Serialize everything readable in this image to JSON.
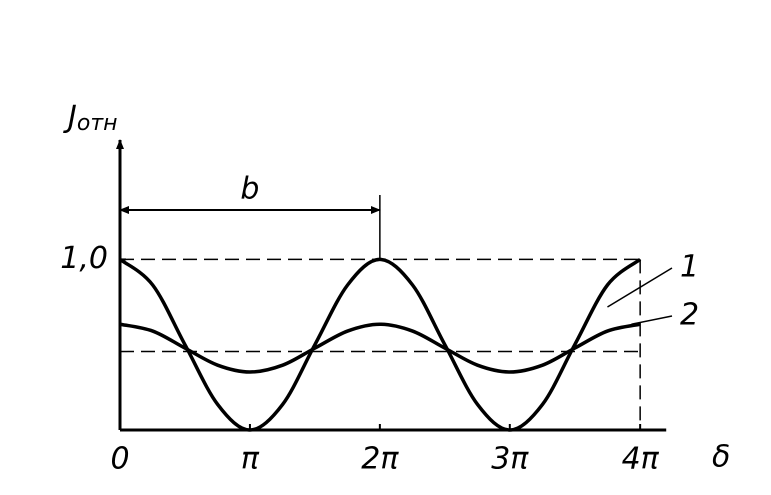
{
  "chart_data": {
    "type": "line",
    "y_label": "J",
    "y_label_sub": "отн",
    "x_label": "δ",
    "span_label": "b",
    "span": [
      0,
      6.28
    ],
    "hlines": [
      1,
      0.46
    ],
    "x": [
      0,
      0.79,
      1.57,
      2.36,
      3.14,
      3.93,
      4.71,
      5.5,
      6.28,
      7.07,
      7.85,
      8.64,
      9.42,
      10.21,
      10.99,
      11.78,
      12.57
    ],
    "series": [
      {
        "name": "1",
        "color": "#000000",
        "values": [
          1,
          0.85,
          0.5,
          0.15,
          0,
          0.15,
          0.5,
          0.85,
          1,
          0.85,
          0.5,
          0.15,
          0,
          0.15,
          0.5,
          0.85,
          1
        ]
      },
      {
        "name": "2",
        "color": "#000000",
        "values": [
          0.62,
          0.58,
          0.48,
          0.38,
          0.34,
          0.38,
          0.48,
          0.58,
          0.62,
          0.58,
          0.48,
          0.38,
          0.34,
          0.38,
          0.48,
          0.58,
          0.62
        ]
      }
    ],
    "xlim": [
      0,
      13.2
    ],
    "ylim": [
      0,
      1.7
    ],
    "xticks": [
      0,
      {
        "value": 3.14,
        "label": "π"
      },
      {
        "value": 6.28,
        "label": "2π"
      },
      {
        "value": 9.42,
        "label": "3π"
      },
      {
        "value": 12.57,
        "label": "4π"
      }
    ],
    "yticks": [
      {
        "value": 1,
        "label": "1,0"
      }
    ]
  }
}
